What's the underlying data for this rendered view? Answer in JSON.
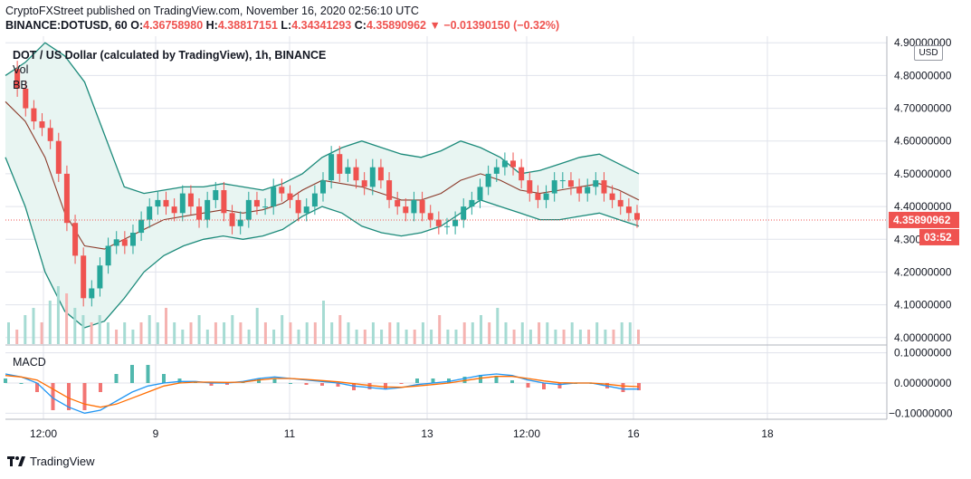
{
  "header": {
    "line1": "CryptoFXStreet published on TradingView.com, November 16, 2020 02:56:10 UTC",
    "symbol_prefix": "BINANCE:DOTUSD, 60",
    "o_label": "O:",
    "o_value": "4.36758980",
    "h_label": "H:",
    "h_value": "4.38817151",
    "l_label": "L:",
    "l_value": "4.34341293",
    "c_label": "C:",
    "c_value": "4.35890962",
    "change": "▼ −0.01390150 (−0.32%)"
  },
  "legend": {
    "title": "DOT / US Dollar (calculated by TradingView), 1h, BINANCE",
    "vol": "Vol",
    "bb": "BB",
    "macd": "MACD"
  },
  "axis": {
    "currency": "USD",
    "last_price": "4.35890962",
    "countdown": "03:52",
    "partial_top_label": "4.90000000",
    "partial_low_label": "4.300"
  },
  "footer": {
    "brand": "TradingView"
  },
  "colors": {
    "up": "#26a69a",
    "down": "#ef5350",
    "band": "#1b8a7a",
    "band_fill": "#e8f5f2",
    "basis": "#8b3a2a",
    "macd_line": "#2196f3",
    "signal_line": "#ff6d00",
    "grid": "#e0e3eb"
  },
  "chart_data": [
    {
      "type": "candlestick",
      "title": "DOT / US Dollar (calculated by TradingView), 1h, BINANCE",
      "x_ticks": [
        "12:00",
        "9",
        "11",
        "13",
        "12:00",
        "16",
        "18"
      ],
      "y_ticks": [
        4.0,
        4.1,
        4.2,
        4.3,
        4.4,
        4.5,
        4.6,
        4.7,
        4.8,
        4.9
      ],
      "ylim": [
        3.98,
        4.92
      ],
      "last_price": 4.35890962,
      "price_path": [
        4.82,
        4.76,
        4.7,
        4.66,
        4.64,
        4.6,
        4.5,
        4.35,
        4.25,
        4.12,
        4.15,
        4.22,
        4.28,
        4.3,
        4.28,
        4.32,
        4.36,
        4.4,
        4.42,
        4.4,
        4.38,
        4.44,
        4.4,
        4.36,
        4.42,
        4.45,
        4.38,
        4.34,
        4.36,
        4.42,
        4.4,
        4.4,
        4.46,
        4.44,
        4.42,
        4.38,
        4.4,
        4.44,
        4.48,
        4.56,
        4.5,
        4.52,
        4.48,
        4.46,
        4.52,
        4.48,
        4.42,
        4.4,
        4.38,
        4.42,
        4.38,
        4.36,
        4.34,
        4.34,
        4.36,
        4.4,
        4.42,
        4.46,
        4.5,
        4.52,
        4.54,
        4.52,
        4.48,
        4.44,
        4.42,
        4.44,
        4.48,
        4.48,
        4.46,
        4.44,
        4.46,
        4.48,
        4.44,
        4.42,
        4.4,
        4.38,
        4.36
      ],
      "bb_upper": [
        4.8,
        4.84,
        4.9,
        4.86,
        4.78,
        4.62,
        4.46,
        4.44,
        4.45,
        4.46,
        4.46,
        4.47,
        4.46,
        4.45,
        4.47,
        4.5,
        4.55,
        4.58,
        4.6,
        4.58,
        4.56,
        4.55,
        4.57,
        4.6,
        4.58,
        4.55,
        4.5,
        4.51,
        4.53,
        4.55,
        4.56,
        4.53,
        4.5
      ],
      "bb_lower": [
        4.55,
        4.4,
        4.2,
        4.08,
        4.03,
        4.05,
        4.12,
        4.2,
        4.25,
        4.28,
        4.3,
        4.31,
        4.3,
        4.31,
        4.33,
        4.37,
        4.4,
        4.38,
        4.34,
        4.32,
        4.31,
        4.32,
        4.34,
        4.38,
        4.42,
        4.4,
        4.38,
        4.36,
        4.36,
        4.37,
        4.38,
        4.36,
        4.34
      ],
      "bb_basis": [
        4.72,
        4.66,
        4.55,
        4.38,
        4.28,
        4.27,
        4.3,
        4.33,
        4.36,
        4.37,
        4.38,
        4.39,
        4.38,
        4.39,
        4.41,
        4.45,
        4.48,
        4.47,
        4.46,
        4.44,
        4.42,
        4.42,
        4.44,
        4.48,
        4.5,
        4.48,
        4.45,
        4.44,
        4.45,
        4.46,
        4.47,
        4.45,
        4.42
      ]
    },
    {
      "type": "bar",
      "title": "",
      "series": [
        {
          "name": "Vol",
          "values": [
            3,
            2,
            4,
            5,
            3,
            6,
            8,
            7,
            5,
            4,
            3,
            4,
            3,
            2,
            3,
            2,
            3,
            4,
            3,
            5,
            3,
            2,
            3,
            4,
            2,
            3,
            3,
            4,
            3,
            2,
            5,
            3,
            2,
            4,
            3,
            2,
            3,
            3,
            6,
            3,
            4,
            3,
            2,
            2,
            3,
            2,
            3,
            3,
            2,
            2,
            3,
            2,
            4,
            2,
            2,
            3,
            3,
            4,
            3,
            5,
            3,
            2,
            3,
            2,
            3,
            3,
            2,
            2,
            3,
            2,
            2,
            3,
            2,
            2,
            3,
            3,
            2
          ]
        }
      ]
    },
    {
      "type": "line",
      "title": "",
      "y_ticks": [
        0.1,
        0.0,
        -0.1
      ],
      "ylim": [
        -0.12,
        0.12
      ],
      "series": [
        {
          "name": "MACD",
          "values": [
            0.03,
            0.02,
            0.0,
            -0.05,
            -0.08,
            -0.1,
            -0.09,
            -0.06,
            -0.03,
            -0.01,
            0.0,
            0.005,
            0.005,
            0.0,
            0.0,
            0.005,
            0.015,
            0.02,
            0.015,
            0.01,
            0.005,
            0.0,
            -0.01,
            -0.015,
            -0.02,
            -0.015,
            -0.005,
            0.0,
            0.005,
            0.015,
            0.025,
            0.03,
            0.025,
            0.01,
            0.0,
            -0.005,
            0.0,
            0.0,
            -0.01,
            -0.02,
            -0.02
          ]
        },
        {
          "name": "Signal",
          "values": [
            0.025,
            0.02,
            0.01,
            -0.02,
            -0.05,
            -0.07,
            -0.08,
            -0.07,
            -0.05,
            -0.03,
            -0.01,
            0.0,
            0.003,
            0.003,
            0.002,
            0.003,
            0.01,
            0.015,
            0.015,
            0.012,
            0.008,
            0.004,
            -0.002,
            -0.008,
            -0.013,
            -0.014,
            -0.01,
            -0.005,
            0.0,
            0.008,
            0.016,
            0.022,
            0.022,
            0.015,
            0.007,
            0.001,
            0.0,
            0.0,
            -0.004,
            -0.01,
            -0.012
          ]
        }
      ]
    }
  ]
}
